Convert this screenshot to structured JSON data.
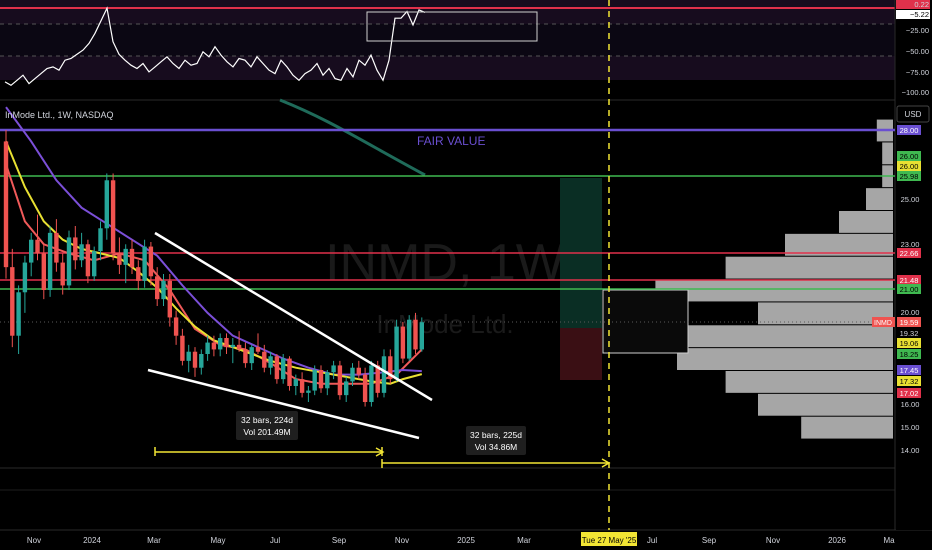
{
  "header": {
    "symbol_line": "InMode Ltd., 1W, NASDAQ",
    "currency": "USD",
    "watermark_symbol": "INMD, 1W",
    "watermark_name": "InMode Ltd."
  },
  "colors": {
    "background": "#000000",
    "candle_up": "#26a69a",
    "candle_down": "#ef5350",
    "ma_fast": "#f05a5a",
    "ma_mid": "#7b4fd8",
    "ma_slow": "#e8e032",
    "ma_long": "#1f6b5a",
    "fair_value": "#6a4fd1",
    "level_red": "#e0314b",
    "level_green": "#3fb950",
    "trendline": "#ffffff",
    "range_yellow": "#f2e534",
    "volume_profile": "#a6a6a6"
  },
  "annotations": {
    "fair_value": "FAIR VALUE",
    "range_left_bars": "32 bars, 224d",
    "range_left_vol": "Vol 201.49M",
    "range_right_bars": "32 bars, 225d",
    "range_right_vol": "Vol 34.86M"
  },
  "oscillator_axis": [
    "0.22",
    "−5.22",
    "−25.00",
    "−50.00",
    "−75.00",
    "−100.00"
  ],
  "price_axis_plain": [
    "25.00",
    "23.00",
    "20.00",
    "16.00",
    "15.00",
    "14.00"
  ],
  "price_axis_tags": [
    {
      "text": "28.00",
      "bg": "#6a4fd1",
      "fg": "#ffffff"
    },
    {
      "text": "26.00",
      "bg": "#3fb950",
      "fg": "#000000"
    },
    {
      "text": "26.00",
      "bg": "#e8e032",
      "fg": "#000000"
    },
    {
      "text": "25.98",
      "bg": "#3fb950",
      "fg": "#000000"
    },
    {
      "text": "22.66",
      "bg": "#e0314b",
      "fg": "#ffffff"
    },
    {
      "text": "21.48",
      "bg": "#e0314b",
      "fg": "#ffffff"
    },
    {
      "text": "21.00",
      "bg": "#3fb950",
      "fg": "#000000"
    },
    {
      "text": "19.59",
      "bg": "#ef5350",
      "fg": "#ffffff"
    },
    {
      "text": "19.32",
      "bg": "#000000",
      "fg": "#d1d4dc"
    },
    {
      "text": "19.06",
      "bg": "#e8e032",
      "fg": "#000000"
    },
    {
      "text": "18.25",
      "bg": "#3fb950",
      "fg": "#000000"
    },
    {
      "text": "17.45",
      "bg": "#6a4fd1",
      "fg": "#ffffff"
    },
    {
      "text": "17.32",
      "bg": "#e8e032",
      "fg": "#000000"
    },
    {
      "text": "17.02",
      "bg": "#e0314b",
      "fg": "#ffffff"
    }
  ],
  "symbol_tag": "INMD",
  "time_axis": [
    "Nov",
    "2024",
    "Mar",
    "May",
    "Jul",
    "Sep",
    "Nov",
    "2025",
    "Mar",
    "Tue 27 May '25",
    "Jul",
    "Sep",
    "Nov",
    "2026",
    "Ma"
  ],
  "chart_data": {
    "type": "candlestick",
    "title": "InMode Ltd., 1W, NASDAQ",
    "ylim": [
      14,
      30
    ],
    "horizontal_levels": [
      28.0,
      25.98,
      22.66,
      21.48,
      21.0
    ],
    "oscillator": {
      "ylim": [
        -100,
        0.22
      ],
      "values": [
        -88,
        -92,
        -86,
        -80,
        -90,
        -84,
        -78,
        -72,
        -70,
        -74,
        -62,
        -60,
        -55,
        -50,
        -42,
        -30,
        -15,
        0,
        -40,
        -55,
        -62,
        -68,
        -72,
        -66,
        -76,
        -70,
        -64,
        -58,
        -66,
        -72,
        -62,
        -68,
        -66,
        -52,
        -58,
        -46,
        -56,
        -64,
        -70,
        -60,
        -62,
        -70,
        -58,
        -66,
        -74,
        -78,
        -62,
        -70,
        -80,
        -86,
        -78,
        -74,
        -66,
        -80,
        -72,
        -84,
        -86,
        -72,
        -82,
        -62,
        -68,
        -56,
        -74,
        -86,
        -62,
        -12,
        -12,
        -4,
        -20,
        -2,
        -5
      ]
    },
    "candles": [
      [
        27.5,
        28.0,
        21.5,
        22.0
      ],
      [
        22.0,
        22.8,
        18.5,
        19.0
      ],
      [
        19.0,
        21.2,
        18.2,
        20.9
      ],
      [
        20.9,
        22.5,
        20.0,
        22.2
      ],
      [
        22.2,
        23.5,
        21.6,
        23.2
      ],
      [
        23.2,
        24.3,
        22.3,
        22.6
      ],
      [
        22.6,
        23.0,
        20.6,
        21.0
      ],
      [
        21.0,
        23.8,
        20.7,
        23.5
      ],
      [
        23.5,
        24.1,
        21.8,
        22.2
      ],
      [
        22.2,
        22.6,
        20.8,
        21.2
      ],
      [
        21.2,
        23.6,
        21.0,
        23.3
      ],
      [
        23.3,
        23.8,
        21.9,
        22.3
      ],
      [
        22.3,
        23.5,
        22.0,
        23.0
      ],
      [
        23.0,
        23.2,
        21.3,
        21.6
      ],
      [
        21.6,
        22.9,
        21.4,
        22.7
      ],
      [
        22.7,
        24.0,
        22.3,
        23.7
      ],
      [
        23.7,
        26.1,
        23.2,
        25.8
      ],
      [
        25.8,
        26.1,
        22.3,
        22.6
      ],
      [
        22.6,
        23.3,
        21.7,
        22.1
      ],
      [
        22.1,
        23.0,
        21.3,
        22.8
      ],
      [
        22.8,
        23.2,
        21.7,
        22.0
      ],
      [
        22.0,
        22.3,
        21.0,
        21.4
      ],
      [
        21.4,
        23.2,
        21.1,
        22.9
      ],
      [
        22.9,
        23.1,
        21.2,
        21.6
      ],
      [
        21.6,
        22.0,
        20.3,
        20.6
      ],
      [
        20.6,
        21.7,
        20.3,
        21.4
      ],
      [
        21.4,
        21.7,
        19.4,
        19.8
      ],
      [
        19.8,
        20.1,
        18.6,
        19.0
      ],
      [
        19.0,
        19.3,
        17.7,
        17.9
      ],
      [
        17.9,
        18.6,
        17.4,
        18.3
      ],
      [
        18.3,
        18.5,
        17.2,
        17.6
      ],
      [
        17.6,
        18.4,
        17.3,
        18.2
      ],
      [
        18.2,
        19.0,
        17.9,
        18.7
      ],
      [
        18.7,
        19.0,
        18.1,
        18.4
      ],
      [
        18.4,
        19.1,
        18.1,
        18.9
      ],
      [
        18.9,
        19.1,
        18.2,
        18.5
      ],
      [
        18.5,
        18.9,
        17.8,
        18.6
      ],
      [
        18.6,
        19.2,
        18.3,
        18.4
      ],
      [
        18.4,
        18.7,
        17.6,
        17.8
      ],
      [
        17.8,
        18.6,
        17.5,
        18.5
      ],
      [
        18.5,
        19.1,
        18.2,
        18.3
      ],
      [
        18.3,
        18.6,
        17.4,
        17.6
      ],
      [
        17.6,
        18.3,
        17.3,
        18.1
      ],
      [
        18.1,
        18.2,
        16.9,
        17.1
      ],
      [
        17.1,
        18.2,
        16.9,
        18.0
      ],
      [
        18.0,
        18.1,
        16.6,
        16.8
      ],
      [
        16.8,
        17.3,
        16.4,
        17.1
      ],
      [
        17.1,
        17.4,
        16.3,
        16.5
      ],
      [
        16.5,
        16.8,
        16.1,
        16.6
      ],
      [
        16.6,
        17.7,
        16.4,
        17.5
      ],
      [
        17.5,
        17.7,
        16.5,
        16.7
      ],
      [
        16.7,
        17.5,
        16.4,
        17.4
      ],
      [
        17.4,
        17.9,
        17.1,
        17.7
      ],
      [
        17.7,
        17.9,
        16.2,
        16.4
      ],
      [
        16.4,
        17.2,
        16.1,
        17.0
      ],
      [
        17.0,
        17.8,
        16.8,
        17.6
      ],
      [
        17.6,
        17.9,
        17.1,
        17.3
      ],
      [
        17.3,
        17.6,
        15.9,
        16.1
      ],
      [
        16.1,
        17.9,
        15.9,
        17.7
      ],
      [
        17.7,
        17.9,
        16.3,
        16.5
      ],
      [
        16.5,
        18.4,
        16.3,
        18.1
      ],
      [
        18.1,
        18.4,
        16.9,
        17.1
      ],
      [
        17.1,
        19.7,
        17.0,
        19.4
      ],
      [
        19.4,
        19.6,
        17.8,
        18.0
      ],
      [
        18.0,
        19.9,
        17.9,
        19.7
      ],
      [
        19.7,
        20.0,
        18.2,
        18.4
      ],
      [
        18.4,
        19.8,
        18.3,
        19.59
      ]
    ],
    "moving_averages": [
      {
        "name": "MA fast",
        "color": "#f05a5a",
        "values": [
          [
            0,
            26.5
          ],
          [
            3,
            24.0
          ],
          [
            6,
            23.0
          ],
          [
            10,
            22.6
          ],
          [
            14,
            22.3
          ],
          [
            18,
            22.6
          ],
          [
            22,
            22.3
          ],
          [
            26,
            21.0
          ],
          [
            30,
            19.3
          ],
          [
            34,
            18.6
          ],
          [
            38,
            18.4
          ],
          [
            42,
            17.8
          ],
          [
            46,
            17.1
          ],
          [
            50,
            16.9
          ],
          [
            54,
            16.9
          ],
          [
            58,
            16.9
          ],
          [
            62,
            17.3
          ],
          [
            66,
            18.4
          ]
        ]
      },
      {
        "name": "MA mid",
        "color": "#7b4fd8",
        "values": [
          [
            0,
            29.0
          ],
          [
            4,
            27.5
          ],
          [
            8,
            25.8
          ],
          [
            12,
            24.6
          ],
          [
            16,
            23.9
          ],
          [
            20,
            23.2
          ],
          [
            24,
            22.5
          ],
          [
            28,
            21.2
          ],
          [
            32,
            20.0
          ],
          [
            36,
            19.0
          ],
          [
            40,
            18.5
          ],
          [
            44,
            18.0
          ],
          [
            48,
            17.6
          ],
          [
            52,
            17.3
          ],
          [
            56,
            17.3
          ],
          [
            60,
            17.4
          ],
          [
            63,
            17.5
          ],
          [
            66,
            17.45
          ]
        ]
      },
      {
        "name": "MA slow",
        "color": "#e8e032",
        "values": [
          [
            0,
            27.5
          ],
          [
            3,
            25.5
          ],
          [
            6,
            24.0
          ],
          [
            9,
            23.2
          ],
          [
            12,
            22.8
          ],
          [
            15,
            22.6
          ],
          [
            18,
            22.4
          ],
          [
            21,
            21.8
          ],
          [
            24,
            21.1
          ],
          [
            27,
            20.2
          ],
          [
            30,
            19.4
          ],
          [
            33,
            18.8
          ],
          [
            36,
            18.5
          ],
          [
            39,
            18.2
          ],
          [
            42,
            17.9
          ],
          [
            46,
            17.6
          ],
          [
            50,
            17.4
          ],
          [
            54,
            17.2
          ],
          [
            58,
            17.0
          ],
          [
            61,
            16.9
          ],
          [
            63,
            17.1
          ],
          [
            66,
            17.32
          ]
        ]
      }
    ],
    "volume_profile": {
      "bins": [
        [
          14.5,
          15.5,
          0.34
        ],
        [
          15.5,
          16.5,
          0.5
        ],
        [
          16.5,
          17.5,
          0.62
        ],
        [
          17.5,
          18.5,
          0.8
        ],
        [
          18.5,
          19.5,
          0.92
        ],
        [
          19.5,
          20.5,
          0.5
        ],
        [
          20.5,
          21.5,
          0.88
        ],
        [
          21.5,
          22.5,
          0.62
        ],
        [
          22.5,
          23.5,
          0.4
        ],
        [
          23.5,
          24.5,
          0.2
        ],
        [
          24.5,
          25.5,
          0.1
        ],
        [
          25.5,
          26.5,
          0.04
        ],
        [
          26.5,
          27.5,
          0.04
        ],
        [
          27.5,
          28.5,
          0.06
        ]
      ]
    }
  }
}
